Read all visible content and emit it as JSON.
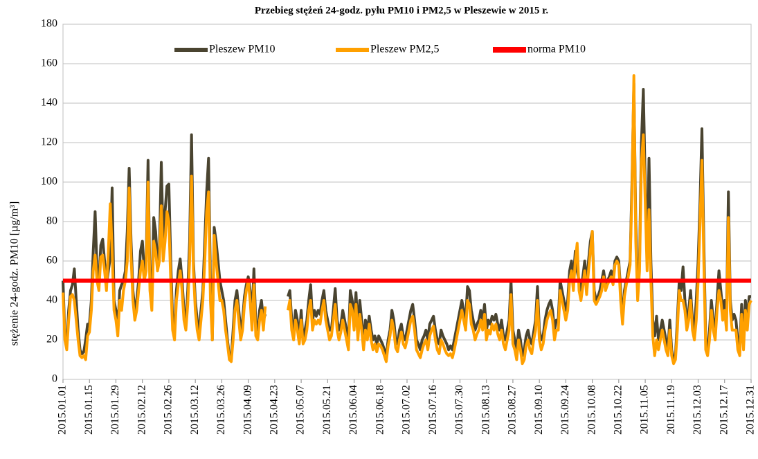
{
  "chart_data": {
    "type": "line",
    "title": "Przebieg stężeń 24-godz. pyłu PM10 i PM2,5  w Pleszewie w 2015 r.",
    "ylabel": "stężenie 24-godz. PM10 [µg/m³]",
    "ylim": [
      0,
      180
    ],
    "yticks": [
      0,
      20,
      40,
      60,
      80,
      100,
      120,
      140,
      160,
      180
    ],
    "grid": true,
    "categories": [
      "2015.01.01",
      null,
      null,
      null,
      null,
      null,
      null,
      null,
      null,
      null,
      null,
      null,
      null,
      null,
      "2015.01.15",
      null,
      null,
      null,
      null,
      null,
      null,
      null,
      null,
      null,
      null,
      null,
      null,
      null,
      "2015.01.29",
      null,
      null,
      null,
      null,
      null,
      null,
      null,
      null,
      null,
      null,
      null,
      null,
      null,
      "2015.02.12",
      null,
      null,
      null,
      null,
      null,
      null,
      null,
      null,
      null,
      null,
      null,
      null,
      null,
      "2015.02.26",
      null,
      null,
      null,
      null,
      null,
      null,
      null,
      null,
      null,
      null,
      null,
      null,
      null,
      "2015.03.12",
      null,
      null,
      null,
      null,
      null,
      null,
      null,
      null,
      null,
      null,
      null,
      null,
      null,
      "2015.03.26",
      null,
      null,
      null,
      null,
      null,
      null,
      null,
      null,
      null,
      null,
      null,
      null,
      null,
      "2015.04.09",
      null,
      null,
      null,
      null,
      null,
      null,
      null,
      null,
      null,
      null,
      null,
      null,
      null,
      "2015.04.23",
      null,
      null,
      null,
      null,
      null,
      null,
      null,
      null,
      null,
      null,
      null,
      null,
      null,
      "2015.05.07",
      null,
      null,
      null,
      null,
      null,
      null,
      null,
      null,
      null,
      null,
      null,
      null,
      null,
      "2015.05.21",
      null,
      null,
      null,
      null,
      null,
      null,
      null,
      null,
      null,
      null,
      null,
      null,
      null,
      "2015.06.04",
      null,
      null,
      null,
      null,
      null,
      null,
      null,
      null,
      null,
      null,
      null,
      null,
      null,
      "2015.06.18",
      null,
      null,
      null,
      null,
      null,
      null,
      null,
      null,
      null,
      null,
      null,
      null,
      null,
      "2015.07.02",
      null,
      null,
      null,
      null,
      null,
      null,
      null,
      null,
      null,
      null,
      null,
      null,
      null,
      "2015.07.16",
      null,
      null,
      null,
      null,
      null,
      null,
      null,
      null,
      null,
      null,
      null,
      null,
      null,
      "2015.07.30",
      null,
      null,
      null,
      null,
      null,
      null,
      null,
      null,
      null,
      null,
      null,
      null,
      null,
      "2015.08.13",
      null,
      null,
      null,
      null,
      null,
      null,
      null,
      null,
      null,
      null,
      null,
      null,
      null,
      "2015.08.27",
      null,
      null,
      null,
      null,
      null,
      null,
      null,
      null,
      null,
      null,
      null,
      null,
      null,
      "2015.09.10",
      null,
      null,
      null,
      null,
      null,
      null,
      null,
      null,
      null,
      null,
      null,
      null,
      null,
      "2015.09.24",
      null,
      null,
      null,
      null,
      null,
      null,
      null,
      null,
      null,
      null,
      null,
      null,
      null,
      "2015.10.08",
      null,
      null,
      null,
      null,
      null,
      null,
      null,
      null,
      null,
      null,
      null,
      null,
      null,
      "2015.10.22",
      null,
      null,
      null,
      null,
      null,
      null,
      null,
      null,
      null,
      null,
      null,
      null,
      null,
      "2015.11.05",
      null,
      null,
      null,
      null,
      null,
      null,
      null,
      null,
      null,
      null,
      null,
      null,
      null,
      "2015.11.19",
      null,
      null,
      null,
      null,
      null,
      null,
      null,
      null,
      null,
      null,
      null,
      null,
      null,
      "2015.12.03",
      null,
      null,
      null,
      null,
      null,
      null,
      null,
      null,
      null,
      null,
      null,
      null,
      null,
      "2015.12.17",
      null,
      null,
      null,
      null,
      null,
      null,
      null,
      null,
      null,
      null,
      null,
      null,
      null,
      "2015.12.31"
    ],
    "series": [
      {
        "name": "Pleszew PM10",
        "color": "#4a4430",
        "values": [
          50,
          22,
          18,
          35,
          45,
          48,
          56,
          40,
          25,
          15,
          13,
          14,
          20,
          28,
          28,
          40,
          65,
          85,
          55,
          50,
          68,
          71,
          60,
          48,
          55,
          62,
          97,
          40,
          35,
          25,
          45,
          48,
          50,
          55,
          75,
          107,
          70,
          45,
          35,
          40,
          50,
          65,
          70,
          55,
          60,
          111,
          50,
          40,
          82,
          75,
          60,
          65,
          110,
          70,
          85,
          98,
          99,
          60,
          30,
          25,
          45,
          55,
          61,
          50,
          35,
          28,
          45,
          70,
          124,
          60,
          40,
          30,
          25,
          35,
          45,
          70,
          95,
          112,
          50,
          20,
          77,
          70,
          60,
          50,
          45,
          40,
          30,
          20,
          12,
          10,
          25,
          40,
          45,
          35,
          25,
          30,
          42,
          48,
          52,
          45,
          30,
          56,
          28,
          25,
          35,
          40,
          30,
          33,
          null,
          null,
          null,
          null,
          null,
          null,
          null,
          null,
          null,
          null,
          null,
          42,
          45,
          30,
          25,
          35,
          30,
          20,
          35,
          20,
          25,
          30,
          40,
          48,
          30,
          35,
          32,
          35,
          33,
          40,
          45,
          35,
          30,
          25,
          25,
          35,
          46,
          30,
          25,
          28,
          35,
          30,
          25,
          20,
          45,
          40,
          30,
          44,
          25,
          40,
          30,
          20,
          30,
          25,
          32,
          25,
          20,
          22,
          18,
          22,
          20,
          18,
          15,
          12,
          20,
          25,
          35,
          30,
          20,
          18,
          25,
          28,
          22,
          20,
          25,
          30,
          35,
          38,
          30,
          20,
          18,
          15,
          20,
          22,
          25,
          20,
          28,
          30,
          32,
          25,
          20,
          18,
          25,
          22,
          20,
          18,
          15,
          17,
          15,
          20,
          25,
          30,
          35,
          40,
          35,
          30,
          47,
          45,
          35,
          30,
          25,
          28,
          30,
          35,
          30,
          38,
          25,
          30,
          28,
          32,
          30,
          33,
          28,
          25,
          30,
          22,
          20,
          25,
          30,
          50,
          25,
          20,
          15,
          25,
          20,
          12,
          15,
          22,
          25,
          20,
          18,
          24,
          30,
          47,
          25,
          20,
          22,
          30,
          35,
          38,
          40,
          35,
          25,
          30,
          30,
          50,
          45,
          40,
          35,
          40,
          55,
          60,
          50,
          65,
          55,
          50,
          45,
          52,
          60,
          48,
          60,
          70,
          75,
          45,
          40,
          42,
          45,
          50,
          55,
          48,
          50,
          52,
          55,
          50,
          60,
          62,
          60,
          45,
          30,
          45,
          50,
          55,
          60,
          100,
          150,
          80,
          45,
          60,
          120,
          147,
          100,
          60,
          112,
          60,
          30,
          22,
          32,
          20,
          25,
          30,
          25,
          20,
          15,
          30,
          15,
          10,
          12,
          30,
          50,
          45,
          57,
          40,
          30,
          35,
          45,
          30,
          25,
          40,
          60,
          90,
          127,
          70,
          20,
          15,
          25,
          40,
          30,
          25,
          40,
          55,
          45,
          35,
          40,
          30,
          95,
          40,
          30,
          33,
          30,
          20,
          15,
          38,
          20,
          40,
          30,
          42,
          42
        ]
      },
      {
        "name": "Pleszew PM2,5",
        "color": "#ffa000",
        "values": [
          44,
          20,
          15,
          30,
          42,
          43,
          40,
          30,
          20,
          12,
          11,
          12,
          10,
          22,
          24,
          35,
          55,
          63,
          50,
          45,
          62,
          63,
          55,
          45,
          65,
          89,
          65,
          35,
          30,
          22,
          40,
          35,
          45,
          50,
          60,
          97,
          62,
          40,
          30,
          35,
          45,
          55,
          60,
          50,
          55,
          100,
          45,
          35,
          70,
          65,
          55,
          60,
          88,
          60,
          70,
          85,
          80,
          50,
          25,
          20,
          40,
          48,
          55,
          45,
          30,
          25,
          38,
          60,
          103,
          55,
          35,
          25,
          20,
          30,
          40,
          60,
          85,
          95,
          40,
          20,
          73,
          60,
          50,
          40,
          40,
          35,
          25,
          18,
          10,
          9,
          20,
          35,
          40,
          30,
          20,
          25,
          38,
          45,
          50,
          40,
          25,
          48,
          22,
          20,
          30,
          35,
          25,
          37,
          null,
          null,
          null,
          null,
          null,
          null,
          null,
          null,
          null,
          null,
          null,
          35,
          40,
          25,
          20,
          30,
          25,
          18,
          30,
          18,
          20,
          25,
          35,
          40,
          25,
          30,
          28,
          30,
          28,
          35,
          40,
          30,
          25,
          20,
          22,
          30,
          38,
          25,
          20,
          24,
          30,
          25,
          20,
          15,
          38,
          35,
          25,
          38,
          20,
          33,
          25,
          15,
          25,
          20,
          28,
          20,
          15,
          18,
          14,
          18,
          17,
          15,
          12,
          9,
          17,
          22,
          30,
          25,
          16,
          14,
          20,
          24,
          18,
          16,
          20,
          25,
          30,
          32,
          25,
          15,
          13,
          11,
          15,
          18,
          20,
          15,
          22,
          25,
          27,
          20,
          15,
          13,
          20,
          18,
          15,
          13,
          12,
          13,
          11,
          15,
          20,
          25,
          30,
          35,
          30,
          25,
          40,
          38,
          28,
          25,
          20,
          23,
          25,
          30,
          25,
          33,
          20,
          25,
          23,
          28,
          25,
          28,
          23,
          20,
          25,
          18,
          15,
          20,
          25,
          43,
          18,
          15,
          10,
          20,
          15,
          8,
          10,
          17,
          20,
          15,
          13,
          20,
          25,
          40,
          20,
          15,
          18,
          25,
          30,
          33,
          35,
          30,
          20,
          25,
          25,
          45,
          40,
          35,
          30,
          35,
          50,
          55,
          45,
          60,
          69,
          45,
          40,
          47,
          55,
          43,
          55,
          65,
          75,
          40,
          38,
          40,
          42,
          45,
          52,
          45,
          48,
          50,
          52,
          48,
          58,
          60,
          58,
          40,
          28,
          42,
          48,
          52,
          58,
          95,
          154,
          70,
          40,
          55,
          110,
          124,
          90,
          55,
          86,
          50,
          22,
          12,
          20,
          15,
          20,
          25,
          20,
          15,
          12,
          25,
          12,
          8,
          10,
          25,
          45,
          40,
          40,
          35,
          25,
          30,
          40,
          25,
          20,
          30,
          50,
          80,
          111,
          60,
          15,
          12,
          20,
          35,
          25,
          20,
          35,
          45,
          40,
          30,
          35,
          25,
          82,
          35,
          25,
          25,
          25,
          15,
          12,
          33,
          15,
          35,
          25,
          38,
          40
        ]
      }
    ],
    "reference_lines": [
      {
        "name": "norma PM10",
        "color": "#ff0000",
        "value": 50
      }
    ]
  }
}
